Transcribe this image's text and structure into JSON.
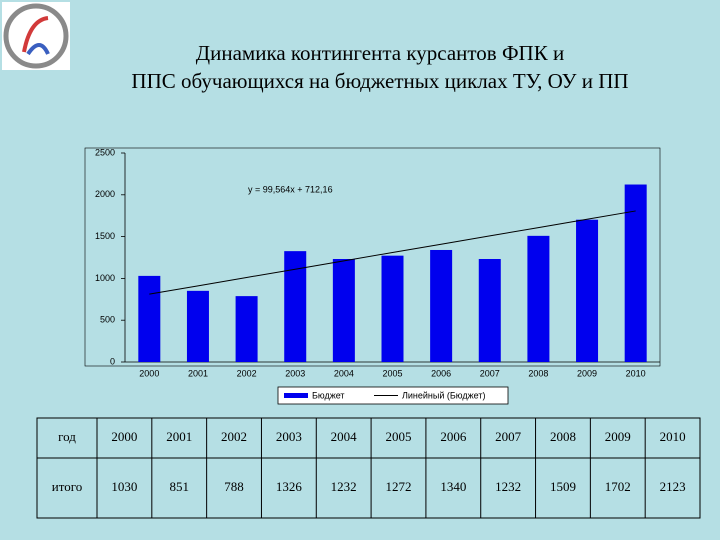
{
  "chart_data": {
    "type": "bar",
    "title": "Динамика контингента курсантов ФПК и ППС обучающихся на бюджетных циклах ТУ, ОУ и ПП",
    "categories": [
      "2000",
      "2001",
      "2002",
      "2003",
      "2004",
      "2005",
      "2006",
      "2007",
      "2008",
      "2009",
      "2010"
    ],
    "series": [
      {
        "name": "Бюджет",
        "type": "bar",
        "color": "#0000ee",
        "values": [
          1030,
          851,
          788,
          1326,
          1232,
          1272,
          1340,
          1232,
          1509,
          1702,
          2123
        ]
      },
      {
        "name": "Линейный (Бюджет)",
        "type": "line",
        "color": "#000000",
        "values": [
          812,
          911,
          1011,
          1110,
          1210,
          1310,
          1409,
          1509,
          1608,
          1708,
          1807
        ]
      }
    ],
    "annotation": "y = 99,564x + 712,16",
    "ylim": [
      0,
      2500
    ],
    "yticks": [
      0,
      500,
      1000,
      1500,
      2000,
      2500
    ],
    "legend": "bottom"
  },
  "table": {
    "rows": [
      [
        "год",
        "2000",
        "2001",
        "2002",
        "2003",
        "2004",
        "2005",
        "2006",
        "2007",
        "2008",
        "2009",
        "2010"
      ],
      [
        "итого",
        "1030",
        "851",
        "788",
        "1326",
        "1232",
        "1272",
        "1340",
        "1232",
        "1509",
        "1702",
        "2123"
      ]
    ]
  }
}
